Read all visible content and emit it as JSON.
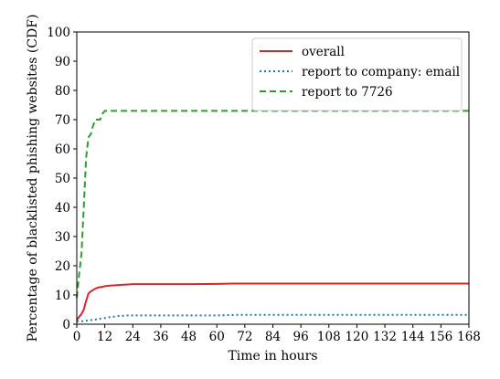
{
  "chart_data": {
    "type": "line",
    "xlabel": "Time in hours",
    "ylabel": "Percentage of blacklisted phishing websites (CDF)",
    "xlim": [
      0,
      168
    ],
    "ylim": [
      0,
      100
    ],
    "xticks": [
      0,
      12,
      24,
      36,
      48,
      60,
      72,
      84,
      96,
      108,
      120,
      132,
      144,
      156,
      168
    ],
    "yticks": [
      0,
      10,
      20,
      30,
      40,
      50,
      60,
      70,
      80,
      90,
      100
    ],
    "grid": false,
    "legend_position": "top-right",
    "series": [
      {
        "name": "overall",
        "color": "#d62728",
        "style": "solid",
        "x": [
          0,
          0.5,
          1,
          2,
          3,
          4,
          5,
          6,
          7,
          8,
          9,
          10,
          11,
          12,
          14,
          16,
          18,
          20,
          22,
          24,
          30,
          40,
          50,
          60,
          68,
          80,
          100,
          120,
          140,
          168
        ],
        "y": [
          1.5,
          2,
          2.5,
          3.5,
          5,
          8,
          10.5,
          11.2,
          11.7,
          12.2,
          12.5,
          12.7,
          12.8,
          13.0,
          13.2,
          13.3,
          13.4,
          13.5,
          13.6,
          13.7,
          13.7,
          13.7,
          13.7,
          13.8,
          13.9,
          13.9,
          13.9,
          13.9,
          13.9,
          13.9
        ]
      },
      {
        "name": "report to company: email",
        "color": "#1f77b4",
        "style": "dotted",
        "x": [
          0,
          2,
          4,
          6,
          8,
          10,
          12,
          14,
          16,
          18,
          20,
          22,
          24,
          36,
          48,
          60,
          68,
          84,
          108,
          132,
          168
        ],
        "y": [
          1,
          1,
          1.2,
          1.4,
          1.6,
          1.9,
          2.1,
          2.4,
          2.6,
          2.8,
          2.9,
          3.0,
          3.0,
          3.0,
          3.0,
          3.0,
          3.2,
          3.2,
          3.2,
          3.2,
          3.2
        ]
      },
      {
        "name": "report to 7726",
        "color": "#2ca02c",
        "style": "dashed",
        "x": [
          0,
          1,
          2,
          3,
          4,
          5,
          6,
          7,
          8,
          9,
          10,
          11,
          12,
          24,
          48,
          96,
          168
        ],
        "y": [
          9,
          17,
          24,
          40,
          57,
          64,
          65,
          68,
          70,
          70,
          70,
          72,
          73,
          73,
          73,
          73,
          73
        ]
      }
    ]
  }
}
